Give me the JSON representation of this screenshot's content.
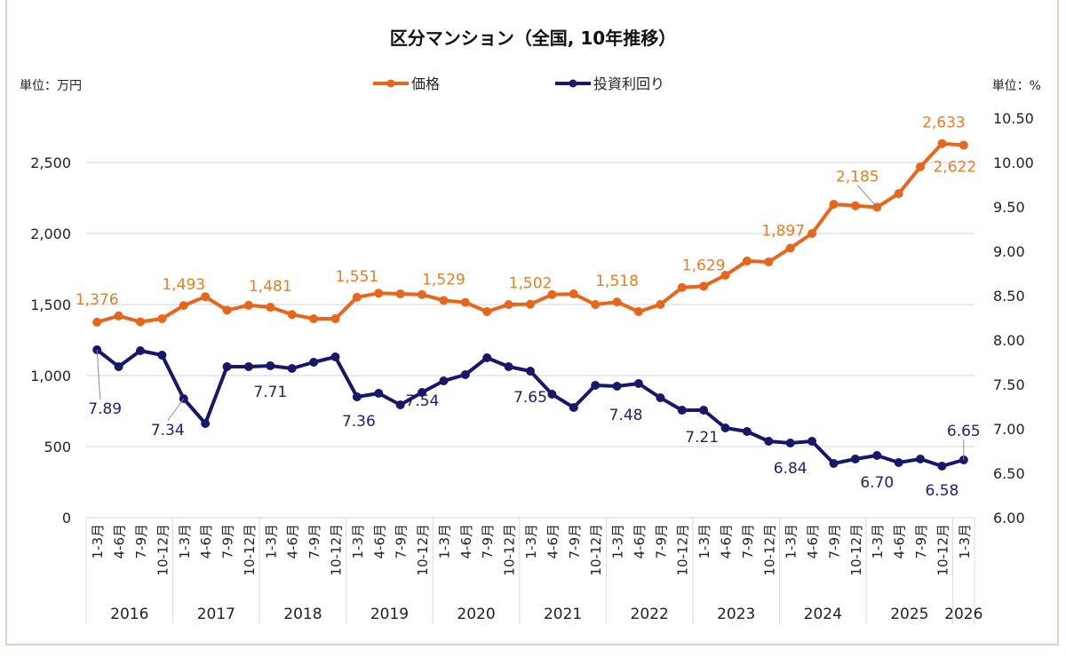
{
  "chart_data": {
    "type": "line",
    "title": "区分マンション（全国, 10年推移）",
    "left_axis": {
      "unit_label": "単位：万円",
      "range": [
        0,
        2750
      ],
      "ticks": [
        0,
        500,
        1000,
        1500,
        2000,
        2500
      ],
      "tick_labels": [
        "0",
        "500",
        "1,000",
        "1,500",
        "2,000",
        "2,500"
      ]
    },
    "right_axis": {
      "unit_label": "単位：%",
      "range": [
        6.0,
        10.75
      ],
      "ticks": [
        6.0,
        6.5,
        7.0,
        7.5,
        8.0,
        8.5,
        9.0,
        9.5,
        10.0,
        10.5
      ],
      "tick_labels": [
        "6.00",
        "6.50",
        "7.00",
        "7.50",
        "8.00",
        "8.50",
        "9.00",
        "9.50",
        "10.00",
        "10.50"
      ]
    },
    "grid": "horizontal",
    "legend": "top-center",
    "quarters": [
      "1-3月",
      "4-6月",
      "7-9月",
      "10-12月"
    ],
    "years": [
      "2016",
      "2017",
      "2018",
      "2019",
      "2020",
      "2021",
      "2022",
      "2023",
      "2024",
      "2025",
      "2026"
    ],
    "categories": [
      "2016 1-3月",
      "2016 4-6月",
      "2016 7-9月",
      "2016 10-12月",
      "2017 1-3月",
      "2017 4-6月",
      "2017 7-9月",
      "2017 10-12月",
      "2018 1-3月",
      "2018 4-6月",
      "2018 7-9月",
      "2018 10-12月",
      "2019 1-3月",
      "2019 4-6月",
      "2019 7-9月",
      "2019 10-12月",
      "2020 1-3月",
      "2020 4-6月",
      "2020 7-9月",
      "2020 10-12月",
      "2021 1-3月",
      "2021 4-6月",
      "2021 7-9月",
      "2021 10-12月",
      "2022 1-3月",
      "2022 4-6月",
      "2022 7-9月",
      "2022 10-12月",
      "2023 1-3月",
      "2023 4-6月",
      "2023 7-9月",
      "2023 10-12月",
      "2024 1-3月",
      "2024 4-6月",
      "2024 7-9月",
      "2024 10-12月",
      "2025 1-3月",
      "2025 4-6月",
      "2025 7-9月",
      "2025 10-12月",
      "2026 1-3月"
    ],
    "series": [
      {
        "name": "価格",
        "axis": "left",
        "color": "#e8661a",
        "label_color": "#e87d22",
        "values": [
          1376,
          1420,
          1378,
          1400,
          1493,
          1555,
          1460,
          1495,
          1481,
          1430,
          1400,
          1400,
          1551,
          1580,
          1575,
          1570,
          1529,
          1515,
          1450,
          1500,
          1502,
          1570,
          1575,
          1500,
          1518,
          1450,
          1500,
          1620,
          1629,
          1706,
          1806,
          1800,
          1897,
          2000,
          2206,
          2195,
          2185,
          2281,
          2469,
          2633,
          2622
        ],
        "data_labels": [
          "1,376",
          null,
          null,
          null,
          "1,493",
          null,
          null,
          null,
          "1,481",
          null,
          null,
          null,
          "1,551",
          null,
          null,
          null,
          "1,529",
          null,
          null,
          null,
          "1,502",
          null,
          null,
          null,
          "1,518",
          null,
          null,
          null,
          "1,629",
          null,
          null,
          null,
          "1,897",
          null,
          null,
          null,
          "2,185",
          null,
          null,
          "2,633",
          "2,622"
        ]
      },
      {
        "name": "投資利回り",
        "axis": "right",
        "color": "#17176b",
        "label_color": "#1e1e78",
        "values": [
          7.89,
          7.7,
          7.88,
          7.83,
          7.34,
          7.06,
          7.7,
          7.7,
          7.71,
          7.68,
          7.75,
          7.81,
          7.36,
          7.4,
          7.27,
          7.41,
          7.54,
          7.61,
          7.8,
          7.7,
          7.65,
          7.39,
          7.24,
          7.49,
          7.48,
          7.51,
          7.35,
          7.21,
          7.21,
          7.01,
          6.97,
          6.86,
          6.84,
          6.86,
          6.61,
          6.66,
          6.7,
          6.62,
          6.66,
          6.58,
          6.65
        ],
        "data_labels": [
          "7.89",
          null,
          null,
          null,
          "7.34",
          null,
          null,
          null,
          "7.71",
          null,
          null,
          null,
          "7.36",
          null,
          null,
          null,
          "7.54",
          null,
          null,
          null,
          "7.65",
          null,
          null,
          null,
          "7.48",
          null,
          null,
          null,
          "7.21",
          null,
          null,
          null,
          "6.84",
          null,
          null,
          null,
          "6.70",
          null,
          null,
          "6.58",
          "6.65"
        ]
      }
    ]
  }
}
